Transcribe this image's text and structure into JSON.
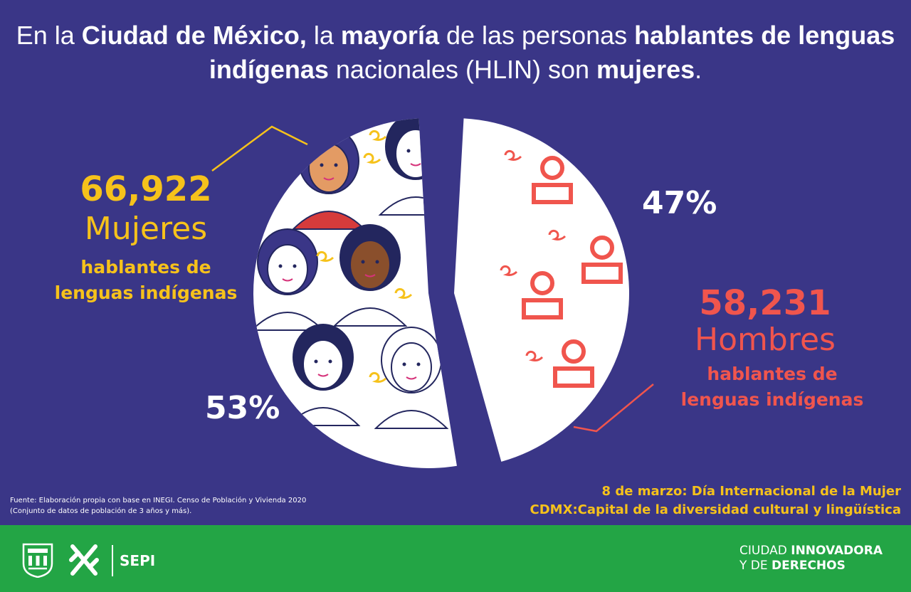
{
  "title": {
    "p1": "En la ",
    "b1": "Ciudad de México,",
    "p2": " la ",
    "b2": "mayoría",
    "p3": " de las personas ",
    "b3": "hablantes de lenguas",
    "b4": "indígenas",
    "p4": " nacionales (HLIN) son ",
    "b5": "mujeres",
    "p5": "."
  },
  "chart_data": {
    "type": "pie",
    "title": "",
    "slices": [
      {
        "name": "Mujeres",
        "value": 66922,
        "percent": 53,
        "color": "#f6c21b"
      },
      {
        "name": "Hombres",
        "value": 58231,
        "percent": 47,
        "color": "#f0554d"
      }
    ]
  },
  "women": {
    "number": "66,922",
    "word": "Mujeres",
    "sub1": "hablantes de",
    "sub2": "lenguas indígenas",
    "percent": "53%"
  },
  "men": {
    "number": "58,231",
    "word": "Hombres",
    "sub1": "hablantes de",
    "sub2": "lenguas indígenas",
    "percent": "47%"
  },
  "source": {
    "line1": "Fuente: Elaboración propia con base en INEGI. Censo de Población y Vivienda 2020",
    "line2": " (Conjunto de datos de población de 3 años y más)."
  },
  "dates": {
    "line1": "8 de marzo: Día Internacional de la Mujer",
    "line2": "CDMX:Capital de la diversidad cultural y lingüística"
  },
  "footer": {
    "sepi": "SEPI",
    "slogan_p1": "CIUDAD ",
    "slogan_b1": "INNOVADORA",
    "slogan_p2": "Y DE ",
    "slogan_b2": "DERECHOS",
    "logo_icons": [
      "cdmx-shield-icon",
      "cdmx-knot-icon"
    ]
  },
  "colors": {
    "background": "#3a3687",
    "women": "#f6c21b",
    "men": "#f0554d",
    "footer": "#23a545"
  }
}
